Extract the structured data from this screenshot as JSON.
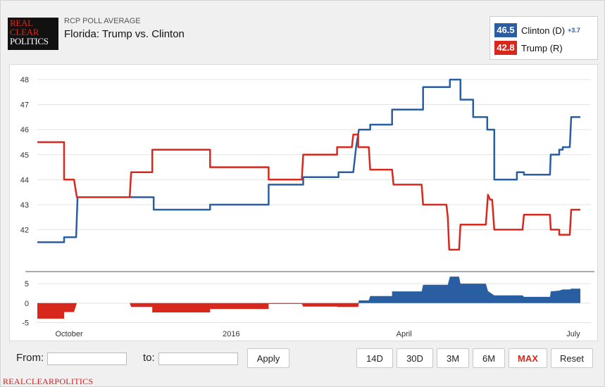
{
  "header": {
    "logo_line1": "REAL",
    "logo_line2": "CLEAR",
    "logo_line3": "POLITICS",
    "kicker": "RCP POLL AVERAGE",
    "title": "Florida: Trump vs. Clinton"
  },
  "legend": {
    "items": [
      {
        "value": "46.5",
        "name": "Clinton (D)",
        "spread": "+3.7",
        "color": "#2a5ea3"
      },
      {
        "value": "42.8",
        "name": "Trump (R)",
        "spread": "",
        "color": "#d8281d"
      }
    ]
  },
  "controls": {
    "from_label": "From:",
    "to_label": "to:",
    "from_value": "",
    "to_value": "",
    "apply_label": "Apply",
    "ranges": [
      "14D",
      "30D",
      "3M",
      "6M",
      "MAX"
    ],
    "active_range": "MAX",
    "reset_label": "Reset"
  },
  "footer": {
    "brand": "REALCLEARPOLITICS"
  },
  "chart_data": {
    "type": "line",
    "title": "Florida: Trump vs. Clinton",
    "x_ticks": [
      "October",
      "2016",
      "April",
      "July"
    ],
    "ylim": [
      41,
      48.2
    ],
    "yticks": [
      42,
      43,
      44,
      45,
      46,
      47,
      48
    ],
    "grid": true,
    "legend_placement": "top-right",
    "series": [
      {
        "name": "Clinton (D)",
        "color": "#2a5ea3",
        "points": [
          [
            0,
            41.5
          ],
          [
            38,
            41.5
          ],
          [
            38,
            41.7
          ],
          [
            55,
            41.7
          ],
          [
            57,
            43.3
          ],
          [
            165,
            43.3
          ],
          [
            165,
            42.8
          ],
          [
            245,
            42.8
          ],
          [
            245,
            43.0
          ],
          [
            328,
            43.0
          ],
          [
            328,
            43.8
          ],
          [
            377,
            43.8
          ],
          [
            377,
            44.1
          ],
          [
            427,
            44.1
          ],
          [
            427,
            44.3
          ],
          [
            448,
            44.3
          ],
          [
            452,
            45.3
          ],
          [
            456,
            46.0
          ],
          [
            472,
            46.0
          ],
          [
            472,
            46.2
          ],
          [
            503,
            46.2
          ],
          [
            503,
            46.8
          ],
          [
            547,
            46.8
          ],
          [
            547,
            47.7
          ],
          [
            585,
            47.7
          ],
          [
            585,
            48.0
          ],
          [
            600,
            48.0
          ],
          [
            600,
            47.2
          ],
          [
            618,
            47.2
          ],
          [
            618,
            46.5
          ],
          [
            638,
            46.5
          ],
          [
            638,
            46.0
          ],
          [
            648,
            46.0
          ],
          [
            648,
            44.0
          ],
          [
            680,
            44.0
          ],
          [
            680,
            44.3
          ],
          [
            690,
            44.3
          ],
          [
            690,
            44.2
          ],
          [
            727,
            44.2
          ],
          [
            728,
            45.0
          ],
          [
            740,
            45.0
          ],
          [
            740,
            45.2
          ],
          [
            745,
            45.2
          ],
          [
            745,
            45.3
          ],
          [
            755,
            45.3
          ],
          [
            757,
            46.5
          ],
          [
            770,
            46.5
          ]
        ]
      },
      {
        "name": "Trump (R)",
        "color": "#d8281d",
        "points": [
          [
            0,
            45.5
          ],
          [
            38,
            45.5
          ],
          [
            38,
            44.0
          ],
          [
            52,
            44.0
          ],
          [
            56,
            43.3
          ],
          [
            131,
            43.3
          ],
          [
            133,
            44.3
          ],
          [
            163,
            44.3
          ],
          [
            163,
            45.2
          ],
          [
            245,
            45.2
          ],
          [
            245,
            44.5
          ],
          [
            328,
            44.5
          ],
          [
            328,
            44.0
          ],
          [
            375,
            44.0
          ],
          [
            377,
            45.0
          ],
          [
            425,
            45.0
          ],
          [
            425,
            45.3
          ],
          [
            446,
            45.3
          ],
          [
            448,
            45.8
          ],
          [
            455,
            45.8
          ],
          [
            455,
            45.3
          ],
          [
            470,
            45.3
          ],
          [
            472,
            44.4
          ],
          [
            503,
            44.4
          ],
          [
            505,
            43.8
          ],
          [
            545,
            43.8
          ],
          [
            547,
            43.0
          ],
          [
            580,
            43.0
          ],
          [
            582,
            42.5
          ],
          [
            584,
            41.2
          ],
          [
            598,
            41.2
          ],
          [
            600,
            42.2
          ],
          [
            636,
            42.2
          ],
          [
            639,
            43.4
          ],
          [
            642,
            43.2
          ],
          [
            645,
            43.2
          ],
          [
            648,
            42.0
          ],
          [
            688,
            42.0
          ],
          [
            690,
            42.6
          ],
          [
            727,
            42.6
          ],
          [
            728,
            42.0
          ],
          [
            740,
            42.0
          ],
          [
            740,
            41.8
          ],
          [
            755,
            41.8
          ],
          [
            757,
            42.8
          ],
          [
            770,
            42.8
          ]
        ]
      }
    ],
    "spread_chart": {
      "type": "area",
      "yticks": [
        -5,
        0,
        5
      ],
      "ylim": [
        -6,
        7
      ],
      "points": [
        [
          0,
          -4.0
        ],
        [
          38,
          -4.0
        ],
        [
          38,
          -2.3
        ],
        [
          52,
          -2.3
        ],
        [
          56,
          0.0
        ],
        [
          131,
          0.0
        ],
        [
          133,
          -1.0
        ],
        [
          163,
          -1.0
        ],
        [
          163,
          -2.4
        ],
        [
          245,
          -2.4
        ],
        [
          245,
          -1.5
        ],
        [
          328,
          -1.5
        ],
        [
          328,
          -0.2
        ],
        [
          375,
          -0.2
        ],
        [
          377,
          -0.9
        ],
        [
          425,
          -0.9
        ],
        [
          425,
          -1.0
        ],
        [
          455,
          -1.0
        ],
        [
          456,
          0.7
        ],
        [
          470,
          0.7
        ],
        [
          472,
          1.8
        ],
        [
          503,
          1.8
        ],
        [
          503,
          3.0
        ],
        [
          545,
          3.0
        ],
        [
          547,
          4.7
        ],
        [
          582,
          4.7
        ],
        [
          585,
          6.8
        ],
        [
          598,
          6.8
        ],
        [
          600,
          5.0
        ],
        [
          636,
          5.0
        ],
        [
          639,
          3.1
        ],
        [
          648,
          2.0
        ],
        [
          688,
          2.0
        ],
        [
          690,
          1.6
        ],
        [
          727,
          1.6
        ],
        [
          728,
          3.0
        ],
        [
          740,
          3.2
        ],
        [
          745,
          3.5
        ],
        [
          755,
          3.5
        ],
        [
          757,
          3.7
        ],
        [
          770,
          3.7
        ]
      ]
    }
  }
}
